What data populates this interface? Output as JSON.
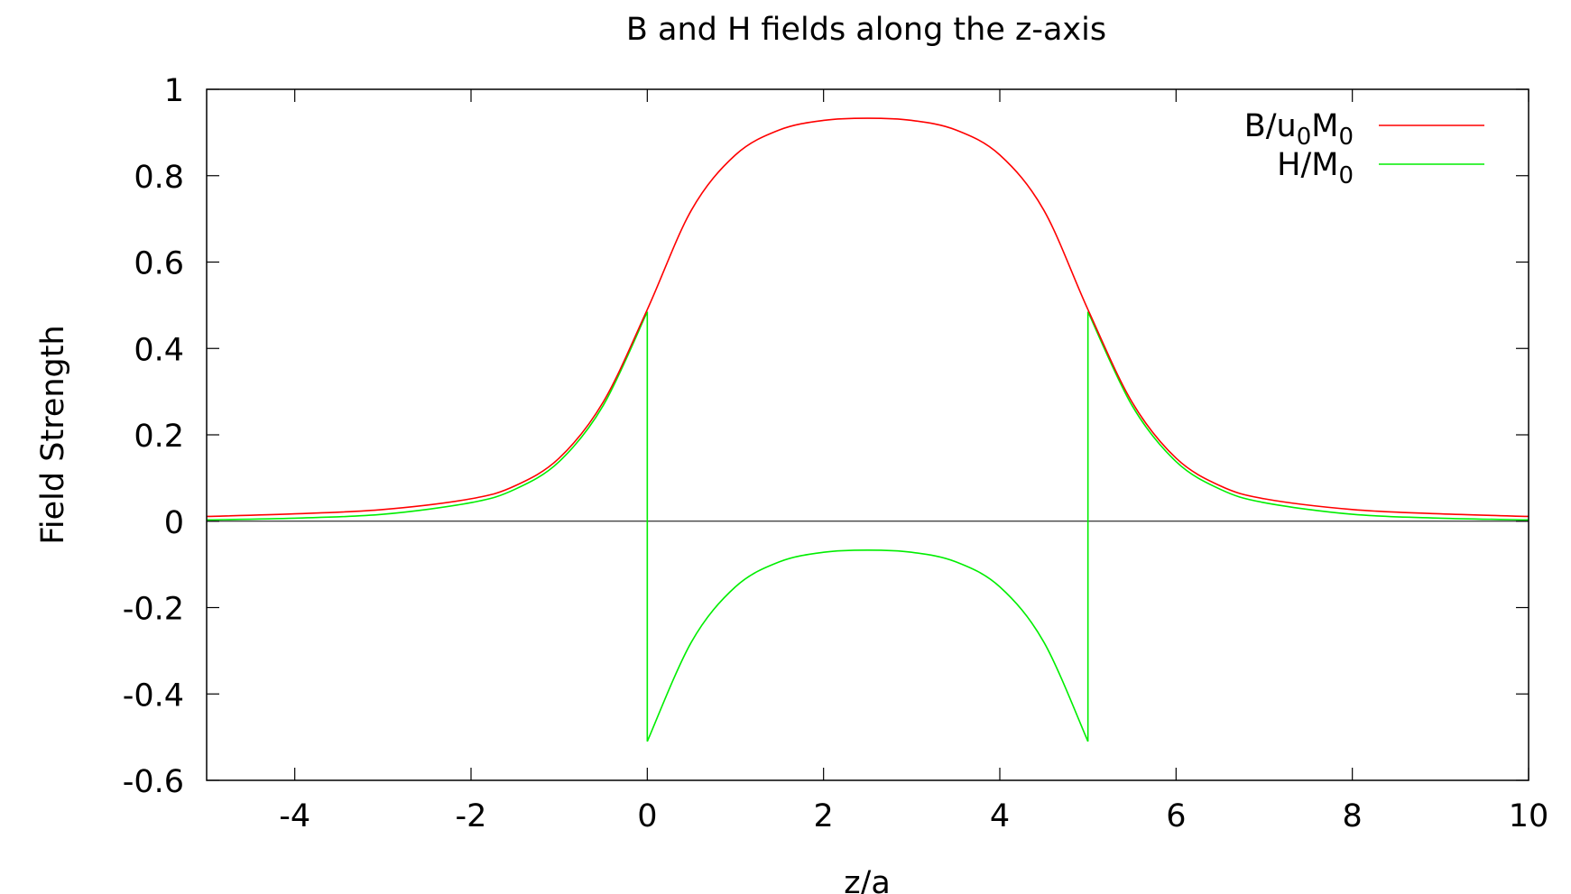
{
  "chart_data": {
    "type": "line",
    "title": "B and H fields along the z-axis",
    "xlabel": "z/a",
    "ylabel": "Field Strength",
    "xlim": [
      -5,
      10
    ],
    "ylim": [
      -0.6,
      1
    ],
    "xticks": [
      -4,
      -2,
      0,
      2,
      4,
      6,
      8,
      10
    ],
    "yticks": [
      -0.6,
      -0.4,
      -0.2,
      0,
      0.2,
      0.4,
      0.6,
      0.8,
      1
    ],
    "grid": false,
    "legend_position": "top-right",
    "series": [
      {
        "name": "B/u0M0",
        "name_parts": {
          "base1": "B/u",
          "sub1": "0",
          "base2": "M",
          "sub2": "0"
        },
        "color": "#ff0000",
        "x": [
          -5,
          -4,
          -3,
          -2,
          -1.5,
          -1,
          -0.5,
          0,
          0.5,
          1,
          1.5,
          2,
          2.5,
          3,
          3.5,
          4,
          4.5,
          5,
          5.5,
          6,
          6.5,
          7,
          8,
          9,
          10
        ],
        "y": [
          0.011,
          0.017,
          0.027,
          0.052,
          0.082,
          0.146,
          0.276,
          0.49,
          0.72,
          0.848,
          0.906,
          0.928,
          0.933,
          0.928,
          0.906,
          0.848,
          0.72,
          0.49,
          0.276,
          0.146,
          0.082,
          0.052,
          0.027,
          0.017,
          0.011
        ]
      },
      {
        "name": "H/M0",
        "name_parts": {
          "base1": "H/M",
          "sub1": "0"
        },
        "color": "#00ee00",
        "x": [
          -5,
          -4,
          -3,
          -2,
          -1.5,
          -1,
          -0.5,
          0,
          0,
          0.5,
          1,
          1.5,
          2,
          2.5,
          3,
          3.5,
          4,
          4.5,
          5,
          5,
          5.5,
          6,
          6.5,
          7,
          8,
          9,
          10
        ],
        "y": [
          0.003,
          0.007,
          0.016,
          0.043,
          0.074,
          0.138,
          0.268,
          0.485,
          -0.51,
          -0.28,
          -0.152,
          -0.094,
          -0.072,
          -0.067,
          -0.072,
          -0.094,
          -0.152,
          -0.28,
          -0.51,
          0.485,
          0.268,
          0.138,
          0.074,
          0.043,
          0.016,
          0.007,
          0.003
        ]
      }
    ]
  }
}
